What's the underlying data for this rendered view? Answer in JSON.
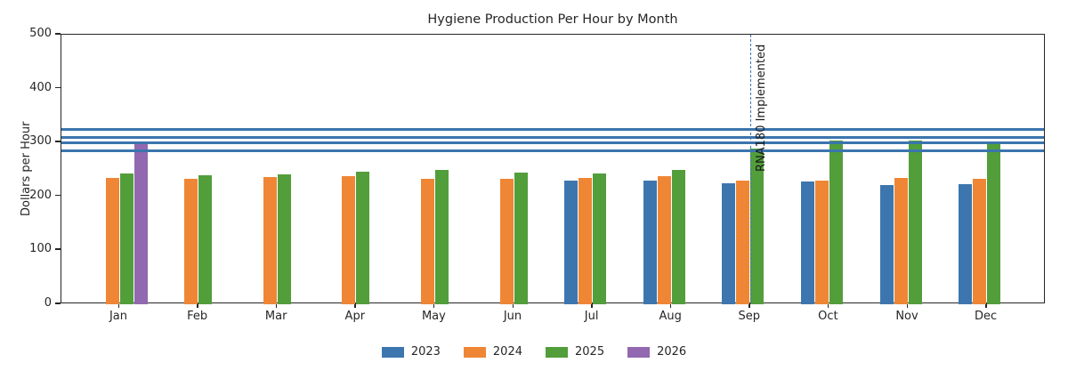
{
  "title": "Hygiene Production Per Hour by Month",
  "chart_data": {
    "type": "bar",
    "title": "Hygiene Production Per Hour by Month",
    "xlabel": "",
    "ylabel": "Dollars per Hour",
    "ylim": [
      0,
      500
    ],
    "yticks": [
      0,
      100,
      200,
      300,
      400,
      500
    ],
    "categories": [
      "Jan",
      "Feb",
      "Mar",
      "Apr",
      "May",
      "Jun",
      "Jul",
      "Aug",
      "Sep",
      "Oct",
      "Nov",
      "Dec"
    ],
    "series": [
      {
        "name": "2023",
        "color": "#3d76ae",
        "values": [
          null,
          null,
          null,
          null,
          null,
          null,
          230,
          229,
          225,
          227,
          221,
          222
        ]
      },
      {
        "name": "2024",
        "color": "#ef8636",
        "values": [
          234,
          233,
          236,
          237,
          232,
          233,
          234,
          237,
          229,
          230,
          234,
          232
        ]
      },
      {
        "name": "2025",
        "color": "#529e3b",
        "values": [
          243,
          239,
          241,
          246,
          249,
          244,
          242,
          249,
          288,
          303,
          304,
          298
        ]
      },
      {
        "name": "2026",
        "color": "#9268b0",
        "values": [
          302,
          null,
          null,
          null,
          null,
          null,
          null,
          null,
          null,
          null,
          null,
          null
        ]
      }
    ],
    "reference_lines": {
      "color": "#3b75ad",
      "values": [
        325,
        310,
        300,
        284
      ]
    },
    "event_line": {
      "at_category": "Sep",
      "style": "dashed",
      "color": "#3d76ae",
      "label": "RNA180 Implemented"
    },
    "legend_position": "bottom",
    "grid": false
  }
}
